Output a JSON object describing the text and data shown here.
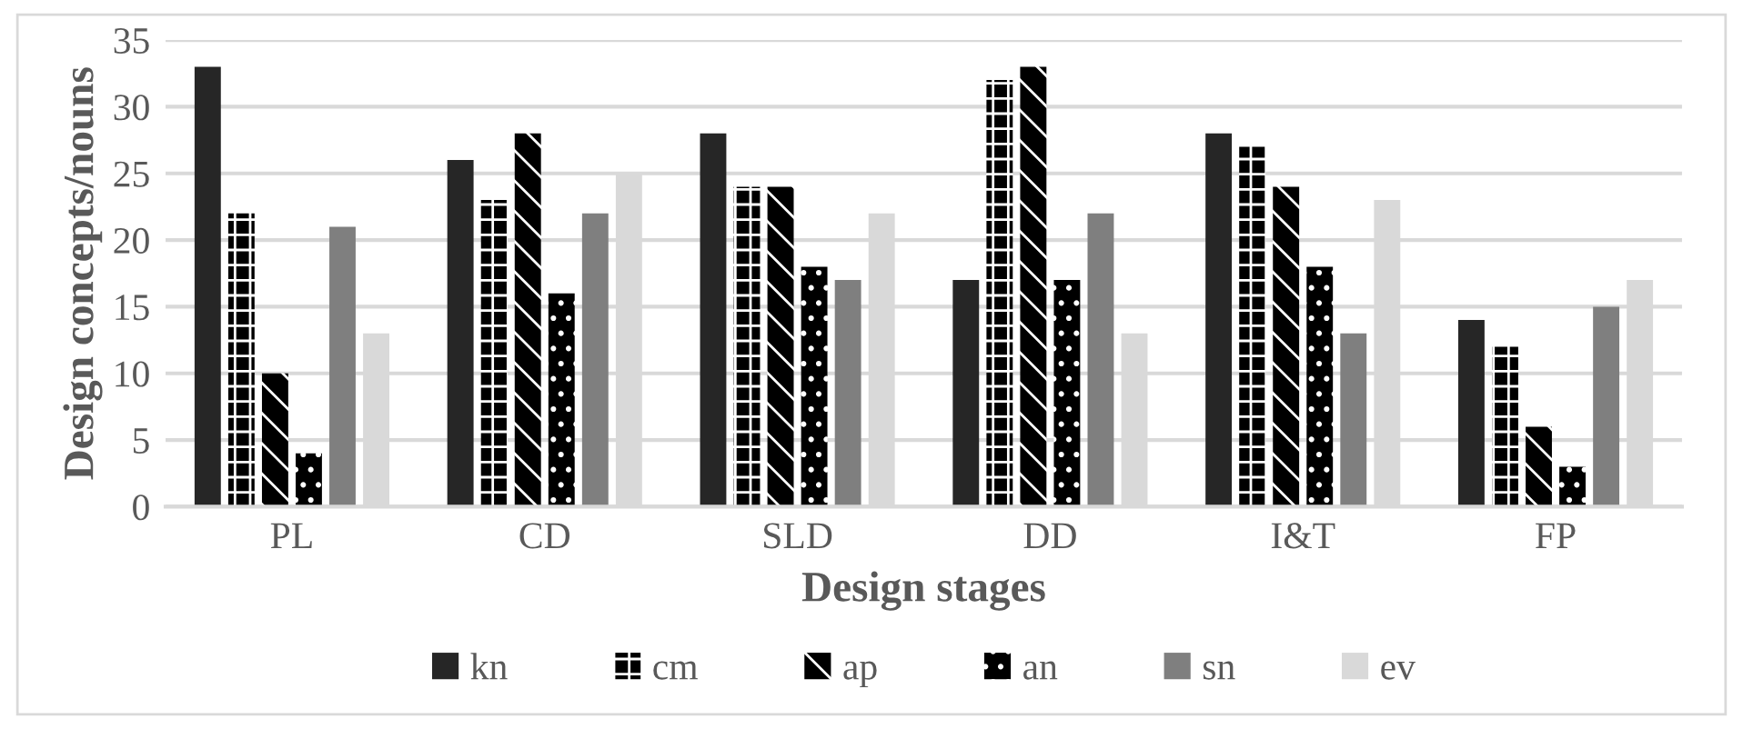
{
  "chart_data": {
    "type": "bar",
    "xlabel": "Design stages",
    "ylabel": "Design concepts/nouns",
    "categories": [
      "PL",
      "CD",
      "SLD",
      "DD",
      "I&T",
      "FP"
    ],
    "series": [
      {
        "name": "kn",
        "color": "#262626",
        "values": [
          33,
          26,
          28,
          17,
          28,
          14
        ]
      },
      {
        "name": "cm",
        "color": "#000000",
        "values": [
          22,
          23,
          24,
          32,
          27,
          12
        ]
      },
      {
        "name": "ap",
        "color": "#000000",
        "values": [
          10,
          28,
          24,
          33,
          24,
          6
        ]
      },
      {
        "name": "an",
        "color": "#000000",
        "values": [
          4,
          16,
          18,
          17,
          18,
          3
        ]
      },
      {
        "name": "sn",
        "color": "#7f7f7f",
        "values": [
          21,
          22,
          17,
          22,
          13,
          15
        ]
      },
      {
        "name": "ev",
        "color": "#d9d9d9",
        "values": [
          13,
          25,
          22,
          13,
          23,
          17
        ]
      }
    ],
    "ylim": [
      0,
      35
    ],
    "yticks": [
      0,
      5,
      10,
      15,
      20,
      25,
      30,
      35
    ],
    "grid": "y",
    "legend": "bottom"
  }
}
